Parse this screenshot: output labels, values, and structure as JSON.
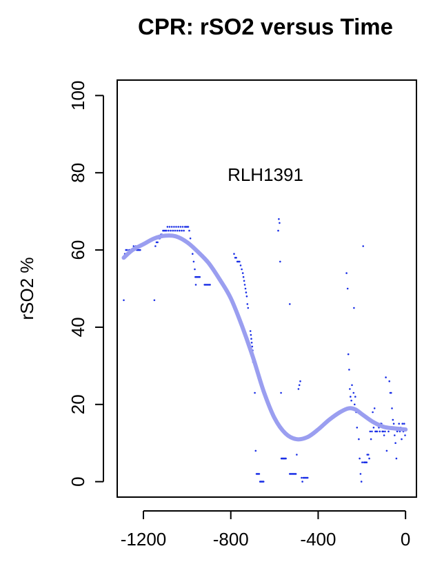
{
  "chart_data": {
    "type": "scatter",
    "title": "CPR: rSO2 versus Time",
    "xlabel": "",
    "ylabel": "rSO2 %",
    "annotation": "RLH1391",
    "xlim": [
      -1320,
      50
    ],
    "ylim": [
      -4,
      104
    ],
    "x_ticks": [
      -1200,
      -800,
      -400,
      0
    ],
    "y_ticks": [
      0,
      20,
      40,
      60,
      80,
      100
    ],
    "grid": false,
    "point_color": "#1a2fe6",
    "smooth_color": "#9a9ef0",
    "series": [
      {
        "kind": "points",
        "points": [
          [
            -1290,
            47
          ],
          [
            -1285,
            59
          ],
          [
            -1280,
            60
          ],
          [
            -1275,
            60
          ],
          [
            -1270,
            59
          ],
          [
            -1265,
            60
          ],
          [
            -1260,
            60
          ],
          [
            -1255,
            60
          ],
          [
            -1250,
            60
          ],
          [
            -1245,
            61
          ],
          [
            -1240,
            60
          ],
          [
            -1235,
            61
          ],
          [
            -1230,
            60
          ],
          [
            -1225,
            60
          ],
          [
            -1220,
            60
          ],
          [
            -1215,
            60
          ],
          [
            -1150,
            47
          ],
          [
            -1145,
            61
          ],
          [
            -1140,
            62
          ],
          [
            -1135,
            62
          ],
          [
            -1130,
            63
          ],
          [
            -1125,
            63
          ],
          [
            -1120,
            64
          ],
          [
            -1115,
            64
          ],
          [
            -1110,
            65
          ],
          [
            -1105,
            65
          ],
          [
            -1100,
            65
          ],
          [
            -1095,
            65
          ],
          [
            -1090,
            66
          ],
          [
            -1085,
            65
          ],
          [
            -1080,
            66
          ],
          [
            -1075,
            65
          ],
          [
            -1070,
            66
          ],
          [
            -1065,
            65
          ],
          [
            -1060,
            66
          ],
          [
            -1055,
            65
          ],
          [
            -1050,
            66
          ],
          [
            -1045,
            65
          ],
          [
            -1040,
            66
          ],
          [
            -1035,
            65
          ],
          [
            -1030,
            66
          ],
          [
            -1025,
            65
          ],
          [
            -1020,
            66
          ],
          [
            -1015,
            65
          ],
          [
            -1010,
            66
          ],
          [
            -1005,
            66
          ],
          [
            -1000,
            66
          ],
          [
            -995,
            66
          ],
          [
            -990,
            65
          ],
          [
            -985,
            63
          ],
          [
            -980,
            61
          ],
          [
            -975,
            59
          ],
          [
            -970,
            57
          ],
          [
            -965,
            55
          ],
          [
            -962,
            53
          ],
          [
            -958,
            53
          ],
          [
            -954,
            53
          ],
          [
            -950,
            53
          ],
          [
            -946,
            53
          ],
          [
            -942,
            53
          ],
          [
            -960,
            51
          ],
          [
            -920,
            51
          ],
          [
            -915,
            51
          ],
          [
            -910,
            51
          ],
          [
            -905,
            51
          ],
          [
            -900,
            51
          ],
          [
            -895,
            51
          ],
          [
            -785,
            59
          ],
          [
            -780,
            58
          ],
          [
            -775,
            58
          ],
          [
            -770,
            57
          ],
          [
            -765,
            57
          ],
          [
            -760,
            57
          ],
          [
            -755,
            56
          ],
          [
            -750,
            55
          ],
          [
            -745,
            54
          ],
          [
            -742,
            53
          ],
          [
            -739,
            52
          ],
          [
            -736,
            51
          ],
          [
            -733,
            50
          ],
          [
            -730,
            49
          ],
          [
            -727,
            48
          ],
          [
            -724,
            46
          ],
          [
            -721,
            45
          ],
          [
            -710,
            39
          ],
          [
            -708,
            38
          ],
          [
            -706,
            37
          ],
          [
            -704,
            36
          ],
          [
            -702,
            35
          ],
          [
            -700,
            34
          ],
          [
            -698,
            31
          ],
          [
            -696,
            31
          ],
          [
            -694,
            31
          ],
          [
            -690,
            23
          ],
          [
            -686,
            8
          ],
          [
            -682,
            2
          ],
          [
            -678,
            2
          ],
          [
            -674,
            2
          ],
          [
            -670,
            2
          ],
          [
            -666,
            0
          ],
          [
            -662,
            0
          ],
          [
            -658,
            0
          ],
          [
            -654,
            0
          ],
          [
            -650,
            0
          ],
          [
            -580,
            68
          ],
          [
            -577,
            67
          ],
          [
            -583,
            65
          ],
          [
            -574,
            57
          ],
          [
            -570,
            23
          ],
          [
            -568,
            6
          ],
          [
            -564,
            6
          ],
          [
            -560,
            6
          ],
          [
            -556,
            6
          ],
          [
            -552,
            6
          ],
          [
            -548,
            6
          ],
          [
            -530,
            46
          ],
          [
            -530,
            2
          ],
          [
            -526,
            2
          ],
          [
            -522,
            2
          ],
          [
            -518,
            2
          ],
          [
            -514,
            2
          ],
          [
            -510,
            2
          ],
          [
            -506,
            2
          ],
          [
            -502,
            2
          ],
          [
            -498,
            7
          ],
          [
            -490,
            24
          ],
          [
            -486,
            25
          ],
          [
            -482,
            26
          ],
          [
            -476,
            1
          ],
          [
            -472,
            0
          ],
          [
            -468,
            1
          ],
          [
            -464,
            1
          ],
          [
            -460,
            1
          ],
          [
            -456,
            1
          ],
          [
            -452,
            1
          ],
          [
            -448,
            1
          ],
          [
            -270,
            54
          ],
          [
            -265,
            50
          ],
          [
            -262,
            33
          ],
          [
            -258,
            29
          ],
          [
            -255,
            24
          ],
          [
            -252,
            22
          ],
          [
            -248,
            21
          ],
          [
            -245,
            25
          ],
          [
            -242,
            19
          ],
          [
            -238,
            23
          ],
          [
            -236,
            45
          ],
          [
            -233,
            20
          ],
          [
            -230,
            22
          ],
          [
            -226,
            18
          ],
          [
            -222,
            14
          ],
          [
            -218,
            18
          ],
          [
            -214,
            11
          ],
          [
            -210,
            6
          ],
          [
            -206,
            2
          ],
          [
            -202,
            0
          ],
          [
            -198,
            5
          ],
          [
            -194,
            61
          ],
          [
            -190,
            5
          ],
          [
            -186,
            5
          ],
          [
            -182,
            5
          ],
          [
            -178,
            5
          ],
          [
            -175,
            7
          ],
          [
            -170,
            7
          ],
          [
            -166,
            6
          ],
          [
            -162,
            13
          ],
          [
            -158,
            11
          ],
          [
            -154,
            13
          ],
          [
            -150,
            18
          ],
          [
            -146,
            14
          ],
          [
            -142,
            19
          ],
          [
            -138,
            13
          ],
          [
            -134,
            13
          ],
          [
            -130,
            13
          ],
          [
            -126,
            15
          ],
          [
            -122,
            14
          ],
          [
            -118,
            13
          ],
          [
            -114,
            15
          ],
          [
            -110,
            15
          ],
          [
            -106,
            13
          ],
          [
            -102,
            13
          ],
          [
            -98,
            12
          ],
          [
            -94,
            13
          ],
          [
            -90,
            27
          ],
          [
            -86,
            8
          ],
          [
            -82,
            14
          ],
          [
            -78,
            13
          ],
          [
            -74,
            26
          ],
          [
            -70,
            23
          ],
          [
            -66,
            23
          ],
          [
            -62,
            19
          ],
          [
            -58,
            16
          ],
          [
            -54,
            15
          ],
          [
            -50,
            12
          ],
          [
            -46,
            10
          ],
          [
            -42,
            6
          ],
          [
            -38,
            13
          ],
          [
            -34,
            14
          ],
          [
            -30,
            15
          ],
          [
            -26,
            13
          ],
          [
            -22,
            14
          ],
          [
            -18,
            11
          ],
          [
            -14,
            15
          ],
          [
            -10,
            13
          ],
          [
            -6,
            15
          ],
          [
            -2,
            12
          ]
        ]
      },
      {
        "kind": "smooth",
        "points": [
          [
            -1290,
            58
          ],
          [
            -1250,
            60
          ],
          [
            -1200,
            61.5
          ],
          [
            -1150,
            63
          ],
          [
            -1100,
            63.7
          ],
          [
            -1050,
            63.5
          ],
          [
            -1000,
            62
          ],
          [
            -950,
            59.5
          ],
          [
            -900,
            56.5
          ],
          [
            -850,
            52.3
          ],
          [
            -800,
            47.5
          ],
          [
            -750,
            40.5
          ],
          [
            -700,
            32.5
          ],
          [
            -650,
            23.5
          ],
          [
            -600,
            16.5
          ],
          [
            -550,
            12.5
          ],
          [
            -500,
            11
          ],
          [
            -450,
            11.5
          ],
          [
            -400,
            13.5
          ],
          [
            -350,
            16
          ],
          [
            -300,
            18
          ],
          [
            -260,
            19
          ],
          [
            -230,
            18.7
          ],
          [
            -200,
            17.5
          ],
          [
            -150,
            15.5
          ],
          [
            -100,
            14.2
          ],
          [
            -50,
            13.8
          ],
          [
            0,
            13.5
          ]
        ]
      }
    ]
  }
}
